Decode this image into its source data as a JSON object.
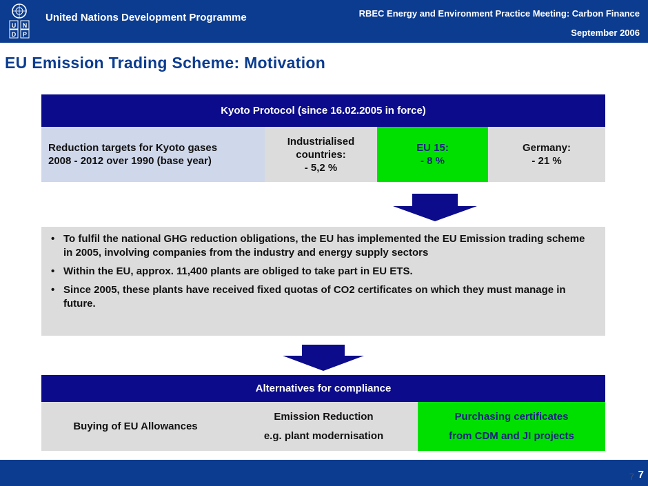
{
  "header": {
    "org_name": "United Nations Development Programme",
    "logo_letters": [
      "U",
      "N",
      "D",
      "P"
    ],
    "meeting_line1": "RBEC Energy and Environment Practice Meeting: Carbon Finance",
    "meeting_line2": "September 2006"
  },
  "title": "EU Emission Trading Scheme: Motivation",
  "kyoto": {
    "header": "Kyoto Protocol (since 16.02.2005 in force)",
    "targets_line1": "Reduction targets for Kyoto gases",
    "targets_line2": "2008 - 2012 over 1990 (base year)",
    "industrialised_line1": "Industrialised",
    "industrialised_line2": "countries:",
    "industrialised_value": "-  5,2 %",
    "eu_label": "EU 15:",
    "eu_value": "-  8  %",
    "germany_label": "Germany:",
    "germany_value": "-  21 %"
  },
  "bullets": [
    "To fulfil the national GHG reduction obligations, the EU has implemented the EU Emission trading scheme in 2005, involving companies from the industry and energy supply sectors",
    "Within the EU, approx. 11,400 plants are obliged to take part in EU ETS.",
    "Since 2005, these plants have received fixed quotas of CO2 certificates on which they must manage in future."
  ],
  "bullet_glyph": "•",
  "alternatives": {
    "header": "Alternatives for compliance",
    "buying": "Buying of EU Allowances",
    "reduction_line1": "Emission Reduction",
    "reduction_line2": "e.g. plant modernisation",
    "purchasing_line1": "Purchasing certificates",
    "purchasing_line2": "from CDM and JI projects"
  },
  "footer": {
    "page_small": "7",
    "page_big": "7"
  },
  "colors": {
    "brand_blue": "#0b3c8f",
    "table_header": "#0b0b8b",
    "highlight_green": "#00e000",
    "cell_grey": "#dcdcdc",
    "cell_lavender": "#cfd7ea"
  }
}
